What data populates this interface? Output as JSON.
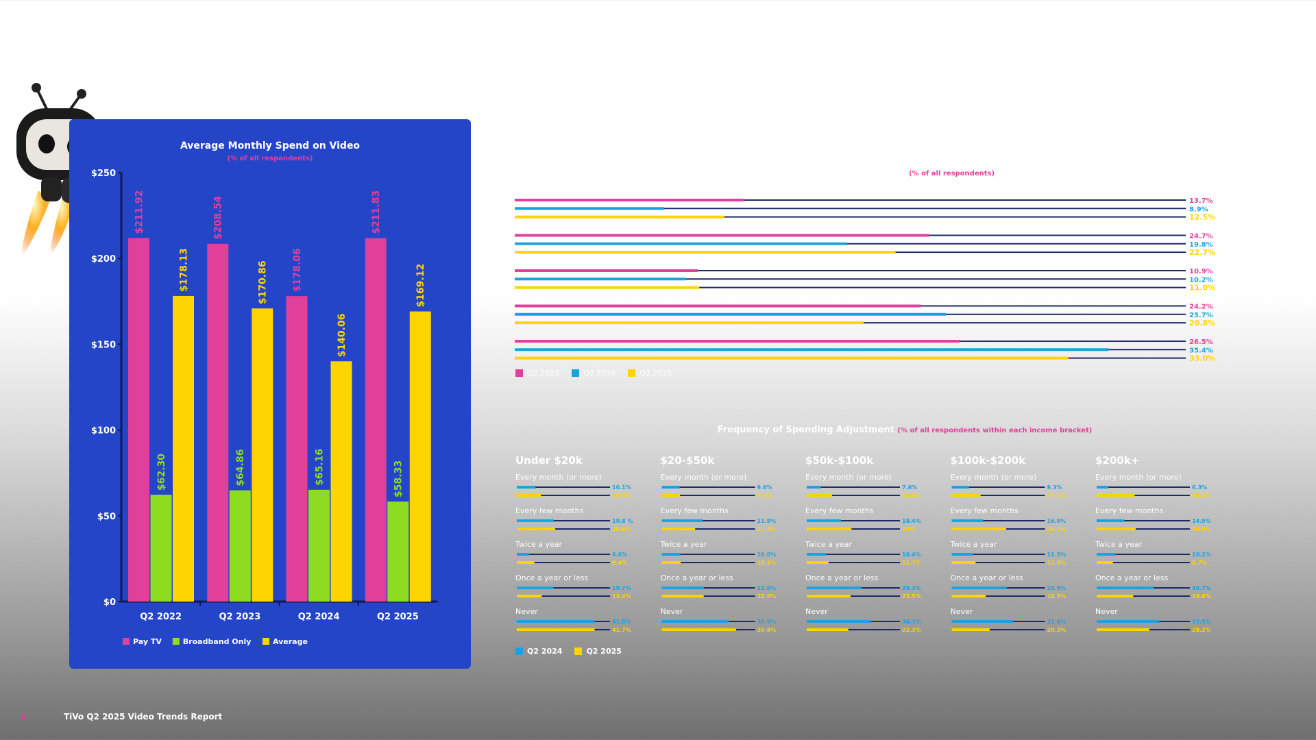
{
  "footer": {
    "page_number": "4",
    "report_title": "TiVo Q2 2025 Video Trends Report"
  },
  "colors": {
    "pink": "#e0409a",
    "blue": "#1aa3e0",
    "yellow": "#ffd400",
    "green": "#8ddc22",
    "navy": "#1c2a66",
    "panel": "#2545c9"
  },
  "left_chart": {
    "title": "Average Monthly Spend on Video",
    "subtitle": "(% of all respondents)",
    "legend": [
      "Pay TV",
      "Broadband Only",
      "Average"
    ]
  },
  "right_top": {
    "subtitle": "(% of all respondents)",
    "legend": [
      "Q2 2023",
      "Q2 2024",
      "Q2 2025"
    ]
  },
  "freq": {
    "title": "Frequency of Spending Adjustment",
    "subtitle": "(% of all respondents within each income bracket)",
    "legend": [
      "Q2 2024",
      "Q2 2025"
    ]
  },
  "chart_data": [
    {
      "type": "bar",
      "title": "Average Monthly Spend on Video",
      "subtitle": "(% of all respondents)",
      "categories": [
        "Q2 2022",
        "Q2 2023",
        "Q2 2024",
        "Q2 2025"
      ],
      "series": [
        {
          "name": "Pay TV",
          "color": "#e0409a",
          "values": [
            211.92,
            208.54,
            178.06,
            211.83
          ],
          "labels": [
            "$211.92",
            "$208.54",
            "$178.06",
            "$211.83"
          ]
        },
        {
          "name": "Broadband Only",
          "color": "#8ddc22",
          "values": [
            62.3,
            64.86,
            65.16,
            58.33
          ],
          "labels": [
            "$62.30",
            "$64.86",
            "$65.16",
            "$58.33"
          ]
        },
        {
          "name": "Average",
          "color": "#ffd400",
          "values": [
            178.13,
            170.86,
            140.06,
            169.12
          ],
          "labels": [
            "$178.13",
            "$170.86",
            "$140.06",
            "$169.12"
          ]
        }
      ],
      "ylim": [
        0,
        250
      ],
      "yticks": [
        0,
        50,
        100,
        150,
        200,
        250
      ],
      "ytick_labels": [
        "$0",
        "$50",
        "$100",
        "$150",
        "$200",
        "$250"
      ],
      "legend": "bottom"
    },
    {
      "type": "bar",
      "orientation": "horizontal",
      "subtitle": "(% of all respondents)",
      "groups": 5,
      "series": [
        {
          "name": "Q2 2023",
          "color": "#e0409a",
          "values": [
            13.7,
            24.7,
            10.9,
            24.2,
            26.5
          ],
          "labels": [
            "13.7%",
            "24.7%",
            "10.9%",
            "24.2%",
            "26.5%"
          ]
        },
        {
          "name": "Q2 2024",
          "color": "#1aa3e0",
          "values": [
            8.9,
            19.8,
            10.2,
            25.7,
            35.4
          ],
          "labels": [
            "8.9%",
            "19.8%",
            "10.2%",
            "25.7%",
            "35.4%"
          ]
        },
        {
          "name": "Q2 2025",
          "color": "#ffd400",
          "values": [
            12.5,
            22.7,
            11.0,
            20.8,
            33.0
          ],
          "labels": [
            "12.5%",
            "22.7%",
            "11.0%",
            "20.8%",
            "33.0%"
          ]
        }
      ],
      "xlim": [
        0,
        40
      ]
    },
    {
      "type": "bar",
      "orientation": "horizontal",
      "title": "Frequency of Spending Adjustment",
      "subtitle": "(% of all respondents within each income bracket)",
      "categories": [
        "Every month (or more)",
        "Every few months",
        "Twice a year",
        "Once a year or less",
        "Never"
      ],
      "brackets": [
        {
          "name": "Under $20k",
          "q2_2024": [
            10.1,
            19.8,
            6.6,
            19.7,
            41.8
          ],
          "q2_2024_labels": [
            "10.1%",
            "19.8 %",
            "6.6%",
            "19.7%",
            "41.8%"
          ],
          "q2_2025": [
            12.9,
            20.6,
            9.4,
            13.4,
            41.7
          ],
          "q2_2025_labels": [
            "12.9%",
            "20.6%",
            "9.4%",
            "13.4%",
            "41.7%"
          ]
        },
        {
          "name": "$20-$50k",
          "q2_2024": [
            9.6,
            21.9,
            10.0,
            22.6,
            35.9
          ],
          "q2_2024_labels": [
            "9.6%",
            "21.9%",
            "10.0%",
            "22.6%",
            "35.9%"
          ],
          "q2_2025": [
            9.8,
            17.9,
            10.1,
            22.5,
            39.8
          ],
          "q2_2025_labels": [
            "9.8%",
            "17.9%",
            "10.1%",
            "22.5%",
            "39.8%"
          ]
        },
        {
          "name": "$50k-$100k",
          "q2_2024": [
            7.6,
            18.4,
            10.4,
            29.3,
            34.3
          ],
          "q2_2024_labels": [
            "7.6%",
            "18.4%",
            "10.4%",
            "29.3%",
            "34.3%"
          ],
          "q2_2025": [
            13.6,
            24.0,
            11.7,
            23.5,
            22.3
          ],
          "q2_2025_labels": [
            "13.6%",
            "24%",
            "11.7%",
            "23.5%",
            "22.3%"
          ]
        },
        {
          "name": "$100k-$200k",
          "q2_2024": [
            9.3,
            16.9,
            11.5,
            29.5,
            32.8
          ],
          "q2_2024_labels": [
            "9.3%",
            "16.9%",
            "11.5%",
            "29.5%",
            "32.8%"
          ],
          "q2_2025": [
            15.5,
            29.2,
            12.8,
            18.3,
            20.3
          ],
          "q2_2025_labels": [
            "15.5%",
            "29.2%",
            "12.8%",
            "18.3%",
            "20.3%"
          ]
        },
        {
          "name": "$200k+",
          "q2_2024": [
            6.3,
            14.9,
            10.2,
            30.7,
            33.5
          ],
          "q2_2024_labels": [
            "6.3%",
            "14.9%",
            "10.2%",
            "30.7%",
            "33.5%"
          ],
          "q2_2025": [
            20.3,
            20.9,
            8.7,
            19.6,
            28.2
          ],
          "q2_2025_labels": [
            "20.3%",
            "20.9%",
            "8.7%",
            "19.6%",
            "28.2%"
          ]
        }
      ],
      "series": [
        {
          "name": "Q2 2024",
          "color": "#1aa3e0"
        },
        {
          "name": "Q2 2025",
          "color": "#ffd400"
        }
      ],
      "xlim": [
        0,
        50
      ]
    }
  ]
}
